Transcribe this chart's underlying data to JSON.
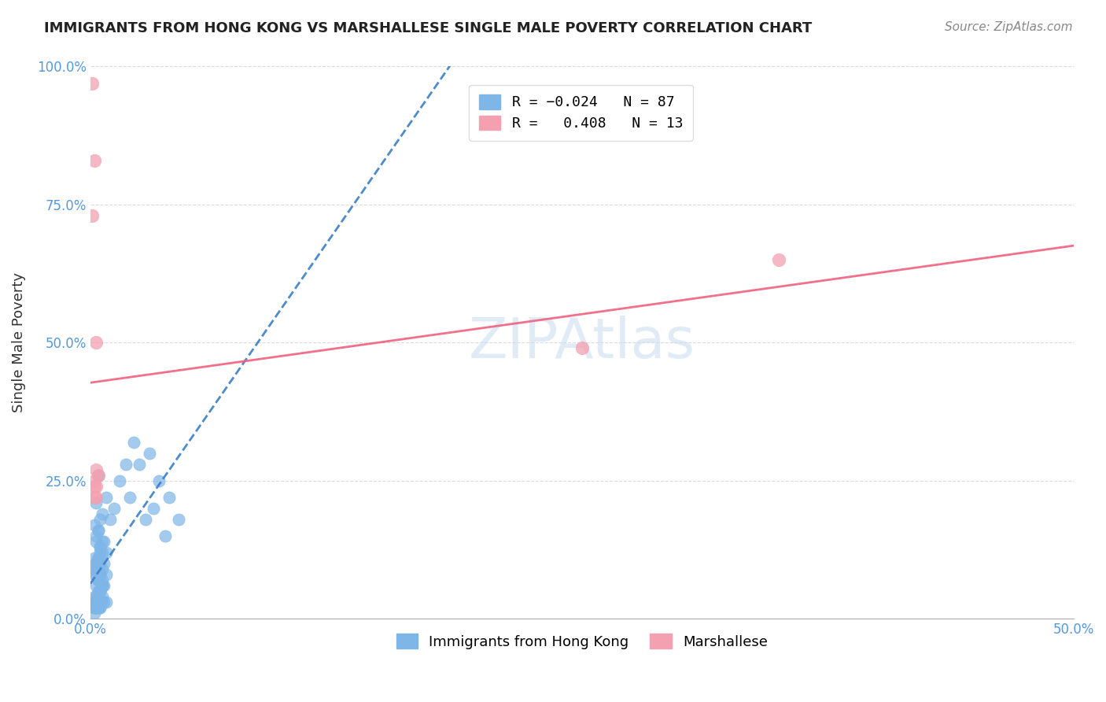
{
  "title": "IMMIGRANTS FROM HONG KONG VS MARSHALLESE SINGLE MALE POVERTY CORRELATION CHART",
  "source": "Source: ZipAtlas.com",
  "xlabel_bottom": "",
  "ylabel": "Single Male Poverty",
  "xlabel_labels": [
    "0.0%",
    "50.0%"
  ],
  "ylabel_labels": [
    "0.0%",
    "25.0%",
    "50.0%",
    "75.0%",
    "100.0%"
  ],
  "xlim": [
    0,
    0.5
  ],
  "ylim": [
    0,
    1.0
  ],
  "yticks": [
    0,
    0.25,
    0.5,
    0.75,
    1.0
  ],
  "xticks": [
    0,
    0.1,
    0.2,
    0.3,
    0.4,
    0.5
  ],
  "hk_r": -0.024,
  "hk_n": 87,
  "marsh_r": 0.408,
  "marsh_n": 13,
  "hk_color": "#7EB6E8",
  "marsh_color": "#F4A0B0",
  "hk_line_color": "#3A7EC6",
  "marsh_line_color": "#F06080",
  "legend_hk_label": "R = −0.024   N = 87",
  "legend_marsh_label": "R =   0.408   N = 13",
  "bottom_legend_hk": "Immigrants from Hong Kong",
  "bottom_legend_marsh": "Marshallese",
  "watermark": "ZIPAtlas",
  "hk_x": [
    0.002,
    0.003,
    0.004,
    0.003,
    0.005,
    0.004,
    0.006,
    0.003,
    0.002,
    0.005,
    0.007,
    0.006,
    0.008,
    0.005,
    0.003,
    0.004,
    0.002,
    0.003,
    0.006,
    0.005,
    0.004,
    0.003,
    0.002,
    0.006,
    0.007,
    0.005,
    0.004,
    0.003,
    0.008,
    0.006,
    0.002,
    0.004,
    0.003,
    0.005,
    0.006,
    0.004,
    0.003,
    0.002,
    0.007,
    0.005,
    0.004,
    0.003,
    0.006,
    0.005,
    0.004,
    0.003,
    0.002,
    0.008,
    0.005,
    0.003,
    0.002,
    0.004,
    0.003,
    0.006,
    0.005,
    0.004,
    0.003,
    0.007,
    0.005,
    0.004,
    0.003,
    0.006,
    0.005,
    0.004,
    0.01,
    0.012,
    0.008,
    0.015,
    0.02,
    0.018,
    0.025,
    0.022,
    0.03,
    0.028,
    0.035,
    0.032,
    0.04,
    0.038,
    0.045,
    0.002,
    0.003,
    0.004,
    0.005,
    0.006,
    0.002,
    0.003,
    0.004
  ],
  "hk_y": [
    0.02,
    0.03,
    0.02,
    0.04,
    0.03,
    0.02,
    0.03,
    0.02,
    0.01,
    0.02,
    0.03,
    0.04,
    0.03,
    0.02,
    0.03,
    0.05,
    0.04,
    0.03,
    0.06,
    0.05,
    0.04,
    0.03,
    0.02,
    0.07,
    0.06,
    0.05,
    0.04,
    0.03,
    0.08,
    0.06,
    0.02,
    0.04,
    0.03,
    0.05,
    0.06,
    0.07,
    0.08,
    0.09,
    0.1,
    0.08,
    0.07,
    0.06,
    0.09,
    0.08,
    0.07,
    0.1,
    0.11,
    0.12,
    0.1,
    0.09,
    0.08,
    0.11,
    0.1,
    0.12,
    0.13,
    0.11,
    0.1,
    0.14,
    0.12,
    0.11,
    0.15,
    0.14,
    0.13,
    0.16,
    0.18,
    0.2,
    0.22,
    0.25,
    0.22,
    0.28,
    0.28,
    0.32,
    0.3,
    0.18,
    0.25,
    0.2,
    0.22,
    0.15,
    0.18,
    0.02,
    0.14,
    0.16,
    0.18,
    0.19,
    0.17,
    0.21,
    0.26
  ],
  "marsh_x": [
    0.001,
    0.002,
    0.001,
    0.003,
    0.002,
    0.002,
    0.003,
    0.004,
    0.003,
    0.35,
    0.25,
    0.003,
    0.002
  ],
  "marsh_y": [
    0.97,
    0.83,
    0.73,
    0.22,
    0.25,
    0.24,
    0.27,
    0.26,
    0.5,
    0.65,
    0.49,
    0.24,
    0.22
  ]
}
